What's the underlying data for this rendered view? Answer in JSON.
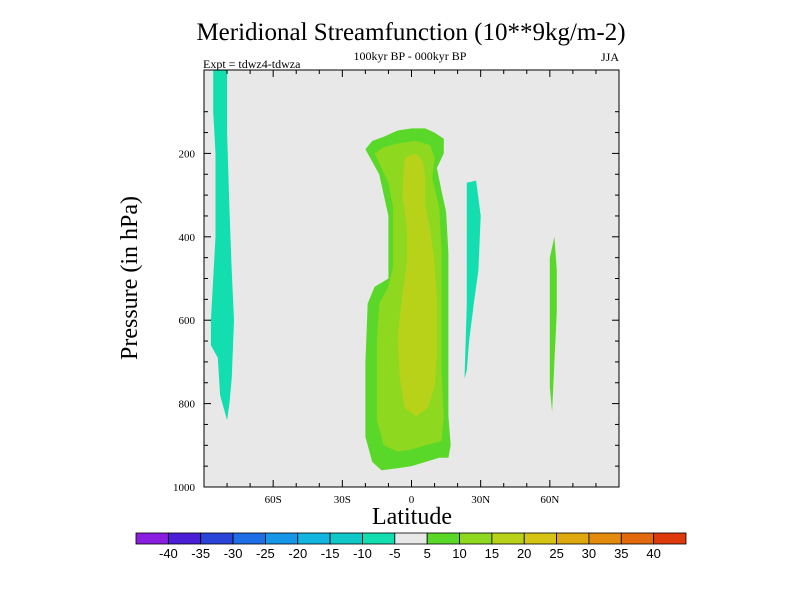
{
  "chart_data": {
    "type": "contour",
    "title": "Meridional Streamfunction (10**9kg/m-2)",
    "subtitle": "100kyr BP - 000kyr BP",
    "season": "JJA",
    "experiment": "Expt = tdwz4-tdwza",
    "xlabel": "Latitude",
    "ylabel": "Pressure (in hPa)",
    "xlim": [
      -90,
      90
    ],
    "ylim": [
      1000,
      0
    ],
    "x_ticks": [
      {
        "value": -60,
        "label": "60S"
      },
      {
        "value": -30,
        "label": "30S"
      },
      {
        "value": 0,
        "label": "0"
      },
      {
        "value": 30,
        "label": "30N"
      },
      {
        "value": 60,
        "label": "60N"
      }
    ],
    "y_ticks": [
      {
        "value": 200,
        "label": "200"
      },
      {
        "value": 400,
        "label": "400"
      },
      {
        "value": 600,
        "label": "600"
      },
      {
        "value": 800,
        "label": "800"
      },
      {
        "value": 1000,
        "label": "1000"
      }
    ],
    "colorbar": {
      "labels": [
        "-40",
        "-35",
        "-30",
        "-25",
        "-20",
        "-15",
        "-10",
        "-5",
        "5",
        "10",
        "15",
        "20",
        "25",
        "30",
        "35",
        "40"
      ],
      "colors": [
        "#8a1ee0",
        "#4a1dd6",
        "#2a44d8",
        "#1e6ee6",
        "#1596e8",
        "#12b4e0",
        "#10c8c8",
        "#12deb0",
        "#e8e8e8",
        "#5ad82a",
        "#8ed820",
        "#b8d21a",
        "#d6c414",
        "#e0a80f",
        "#e48a0d",
        "#e26a0c",
        "#de3a0c"
      ]
    },
    "regions": [
      {
        "name": "south-polar-negative",
        "level": "-10 to -5",
        "color": "#12deb0",
        "points": [
          [
            -86,
            0
          ],
          [
            -80,
            0
          ],
          [
            -80,
            150
          ],
          [
            -79,
            330
          ],
          [
            -78,
            480
          ],
          [
            -77,
            600
          ],
          [
            -78,
            740
          ],
          [
            -79,
            800
          ],
          [
            -80,
            840
          ],
          [
            -83,
            780
          ],
          [
            -84,
            690
          ],
          [
            -87,
            660
          ],
          [
            -87,
            600
          ],
          [
            -85,
            400
          ],
          [
            -85,
            200
          ],
          [
            -86,
            100
          ]
        ]
      },
      {
        "name": "subtropical-north-negative",
        "level": "-10 to -5",
        "color": "#12deb0",
        "points": [
          [
            24,
            270
          ],
          [
            26,
            268
          ],
          [
            28,
            265
          ],
          [
            30,
            350
          ],
          [
            29,
            480
          ],
          [
            27,
            560
          ],
          [
            25,
            650
          ],
          [
            24,
            720
          ],
          [
            23,
            740
          ],
          [
            24,
            560
          ],
          [
            24,
            420
          ]
        ]
      },
      {
        "name": "mid-latitude-north-positive",
        "level": "5 to 10",
        "color": "#5ad82a",
        "points": [
          [
            62,
            400
          ],
          [
            63,
            480
          ],
          [
            63,
            580
          ],
          [
            62,
            700
          ],
          [
            61,
            820
          ],
          [
            60,
            760
          ],
          [
            60,
            560
          ],
          [
            60,
            450
          ]
        ]
      },
      {
        "name": "hadley-cell-outer",
        "level": "5 to 10",
        "color": "#5ad82a",
        "points": [
          [
            -20,
            190
          ],
          [
            -17,
            170
          ],
          [
            -12,
            160
          ],
          [
            -6,
            145
          ],
          [
            0,
            140
          ],
          [
            6,
            140
          ],
          [
            10,
            150
          ],
          [
            14,
            165
          ],
          [
            14,
            200
          ],
          [
            11,
            235
          ],
          [
            13,
            290
          ],
          [
            15,
            340
          ],
          [
            16,
            440
          ],
          [
            16,
            600
          ],
          [
            16,
            720
          ],
          [
            16,
            830
          ],
          [
            17,
            900
          ],
          [
            16,
            930
          ],
          [
            12,
            930
          ],
          [
            6,
            940
          ],
          [
            0,
            950
          ],
          [
            -6,
            955
          ],
          [
            -13,
            960
          ],
          [
            -17,
            940
          ],
          [
            -20,
            880
          ],
          [
            -20,
            700
          ],
          [
            -19,
            560
          ],
          [
            -16,
            520
          ],
          [
            -10,
            500
          ],
          [
            -10,
            350
          ],
          [
            -14,
            250
          ]
        ]
      },
      {
        "name": "hadley-cell-inner",
        "level": "10 to 15",
        "color": "#8ed820",
        "points": [
          [
            -16,
            200
          ],
          [
            -12,
            185
          ],
          [
            -5,
            175
          ],
          [
            2,
            170
          ],
          [
            8,
            180
          ],
          [
            10,
            210
          ],
          [
            9,
            260
          ],
          [
            12,
            330
          ],
          [
            13,
            430
          ],
          [
            13,
            600
          ],
          [
            13,
            720
          ],
          [
            14,
            830
          ],
          [
            13,
            890
          ],
          [
            6,
            900
          ],
          [
            0,
            910
          ],
          [
            -6,
            915
          ],
          [
            -12,
            900
          ],
          [
            -15,
            840
          ],
          [
            -15,
            650
          ],
          [
            -14,
            560
          ],
          [
            -10,
            520
          ],
          [
            -8,
            470
          ],
          [
            -8,
            330
          ],
          [
            -10,
            270
          ]
        ]
      },
      {
        "name": "hadley-cell-core",
        "level": "15 to 20",
        "color": "#b8d21a",
        "points": [
          [
            -3,
            210
          ],
          [
            2,
            200
          ],
          [
            5,
            220
          ],
          [
            6,
            260
          ],
          [
            6,
            320
          ],
          [
            8,
            380
          ],
          [
            10,
            460
          ],
          [
            11,
            560
          ],
          [
            11,
            680
          ],
          [
            10,
            760
          ],
          [
            7,
            810
          ],
          [
            2,
            830
          ],
          [
            -3,
            810
          ],
          [
            -5,
            740
          ],
          [
            -6,
            640
          ],
          [
            -4,
            540
          ],
          [
            -2,
            460
          ],
          [
            -2,
            380
          ],
          [
            -4,
            300
          ]
        ]
      }
    ]
  }
}
